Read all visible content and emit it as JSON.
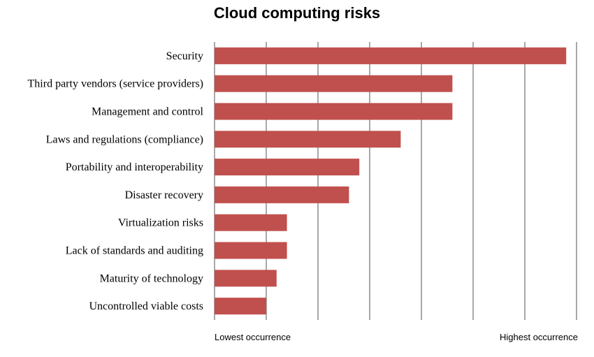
{
  "chart_data": {
    "type": "bar",
    "orientation": "horizontal",
    "title": "Cloud computing risks",
    "categories": [
      "Security",
      "Third party vendors (service providers)",
      "Management and control",
      "Laws and regulations (compliance)",
      "Portability and interoperability",
      "Disaster recovery",
      "Virtualization risks",
      "Lack of standards and auditing",
      "Maturity of technology",
      "Uncontrolled viable costs"
    ],
    "values": [
      6.8,
      4.6,
      4.6,
      3.6,
      2.8,
      2.6,
      1.4,
      1.4,
      1.2,
      1.0
    ],
    "xlim": [
      0,
      7
    ],
    "x_gridlines": 7,
    "xlabel_low": "Lowest occurrence",
    "xlabel_high": "Highest occurrence",
    "bar_color": "#c0504d",
    "grid_color": "#8c8c8c"
  }
}
